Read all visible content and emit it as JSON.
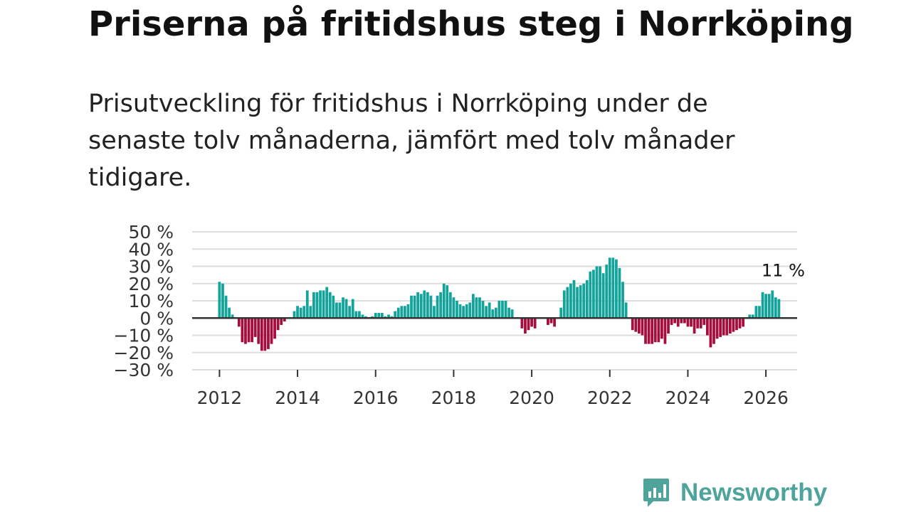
{
  "title": "Priserna på fritidshus steg i Norrköping",
  "subtitle": "Prisutveckling för fritidshus i Norrköping under de senaste tolv månaderna, jämfört med tolv månader tidigare.",
  "brand": {
    "name": "Newsworthy",
    "color": "#4ea39a"
  },
  "colors": {
    "positive": "#12a39a",
    "negative": "#a50d3c",
    "grid": "#dddddd",
    "zero": "#333333"
  },
  "chart_data": {
    "type": "bar",
    "title": "Priserna på fritidshus steg i Norrköping",
    "xlabel": "",
    "ylabel": "",
    "ylim": [
      -30,
      50
    ],
    "xlim": [
      2011.3,
      2026.8
    ],
    "yticks": [
      -30,
      -20,
      -10,
      0,
      10,
      20,
      30,
      40,
      50
    ],
    "ytick_labels": [
      "−30 %",
      "−20 %",
      "−10 %",
      "0 %",
      "10 %",
      "20 %",
      "30 %",
      "40 %",
      "50 %"
    ],
    "xticks": [
      2012,
      2014,
      2016,
      2018,
      2020,
      2022,
      2024,
      2026
    ],
    "xtick_labels": [
      "2012",
      "2014",
      "2016",
      "2018",
      "2020",
      "2022",
      "2024",
      "2026"
    ],
    "grid": true,
    "end_label": "11 %",
    "start": 2012,
    "step_per_year": 12,
    "values": [
      21,
      20,
      13,
      6,
      2,
      0,
      -5,
      -14,
      -15,
      -14,
      -14,
      -11,
      -15,
      -19,
      -19,
      -18,
      -15,
      -12,
      -7,
      -4,
      -2,
      0,
      0,
      4,
      7,
      6,
      7,
      16,
      7,
      15,
      15,
      16,
      16,
      18,
      15,
      13,
      9,
      9,
      12,
      11,
      7,
      11,
      4,
      4,
      2,
      1,
      0,
      1,
      3,
      3,
      3,
      1,
      2,
      1,
      4,
      6,
      7,
      7,
      8,
      13,
      13,
      15,
      14,
      16,
      15,
      13,
      7,
      13,
      15,
      20,
      19,
      15,
      12,
      10,
      8,
      7,
      8,
      9,
      14,
      12,
      12,
      10,
      7,
      9,
      5,
      6,
      10,
      10,
      10,
      6,
      5,
      0,
      0,
      -6,
      -9,
      -7,
      -5,
      -6,
      0,
      0,
      0,
      -4,
      -3,
      -5,
      0,
      6,
      16,
      18,
      20,
      22,
      18,
      19,
      20,
      22,
      27,
      28,
      30,
      30,
      26,
      31,
      35,
      35,
      34,
      29,
      21,
      9,
      0,
      -7,
      -8,
      -9,
      -10,
      -15,
      -15,
      -15,
      -14,
      -14,
      -12,
      -15,
      -9,
      -4,
      -3,
      -5,
      -3,
      -3,
      -5,
      -5,
      -9,
      -6,
      -6,
      -4,
      -10,
      -17,
      -15,
      -12,
      -11,
      -10,
      -10,
      -9,
      -8,
      -7,
      -6,
      -5,
      0,
      2,
      2,
      7,
      7,
      15,
      14,
      14,
      16,
      12,
      11
    ]
  }
}
